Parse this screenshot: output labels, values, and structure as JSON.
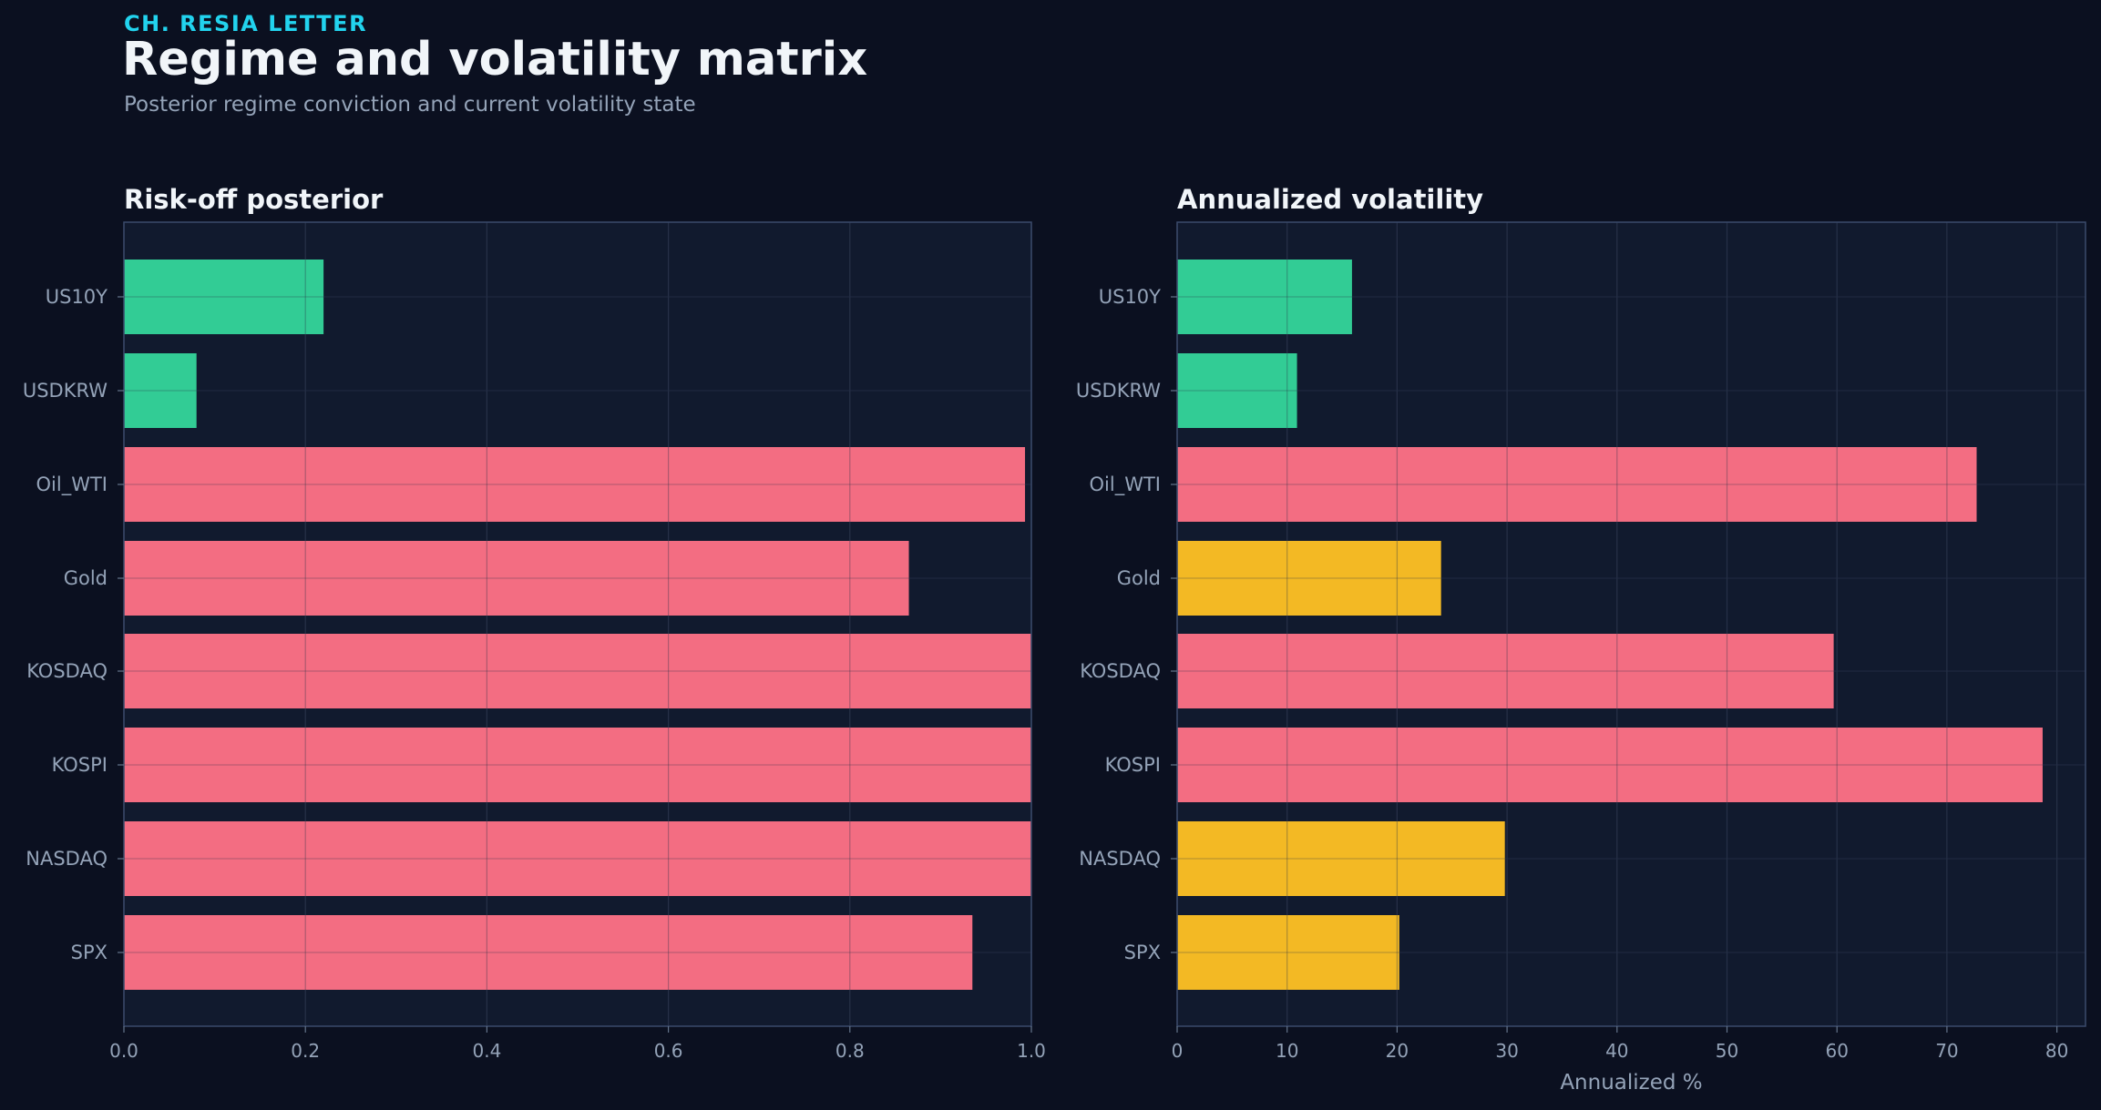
{
  "header": {
    "kicker": "CH. RESIA LETTER",
    "title": "Regime and volatility matrix",
    "subtitle": "Posterior regime conviction and current volatility state"
  },
  "colors": {
    "background": "#0b1020",
    "panel": "#111a2e",
    "green": "#34d399",
    "red": "#fb7185",
    "amber": "#fbbf24",
    "kicker": "#22d3ee"
  },
  "chart_data": [
    {
      "type": "bar",
      "orientation": "horizontal",
      "title": "Risk-off posterior",
      "xlabel": "",
      "ylabel": "",
      "xlim": [
        0,
        1.0
      ],
      "xticks": [
        "0.0",
        "0.2",
        "0.4",
        "0.6",
        "0.8",
        "1.0"
      ],
      "grid": true,
      "categories": [
        "US10Y",
        "USDKRW",
        "Oil_WTI",
        "Gold",
        "KOSDAQ",
        "KOSPI",
        "NASDAQ",
        "SPX"
      ],
      "values": [
        0.22,
        0.08,
        0.993,
        0.865,
        1.0,
        1.0,
        1.0,
        0.935
      ],
      "bar_colors": [
        "green",
        "green",
        "red",
        "red",
        "red",
        "red",
        "red",
        "red"
      ]
    },
    {
      "type": "bar",
      "orientation": "horizontal",
      "title": "Annualized volatility",
      "xlabel": "Annualized %",
      "ylabel": "",
      "xlim": [
        0,
        82.6
      ],
      "xticks": [
        "0",
        "10",
        "20",
        "30",
        "40",
        "50",
        "60",
        "70",
        "80"
      ],
      "grid": true,
      "categories": [
        "US10Y",
        "USDKRW",
        "Oil_WTI",
        "Gold",
        "KOSDAQ",
        "KOSPI",
        "NASDAQ",
        "SPX"
      ],
      "values": [
        15.9,
        10.9,
        72.7,
        24.0,
        59.7,
        78.7,
        29.8,
        20.2
      ],
      "bar_colors": [
        "green",
        "green",
        "red",
        "amber",
        "red",
        "red",
        "amber",
        "amber"
      ]
    }
  ]
}
